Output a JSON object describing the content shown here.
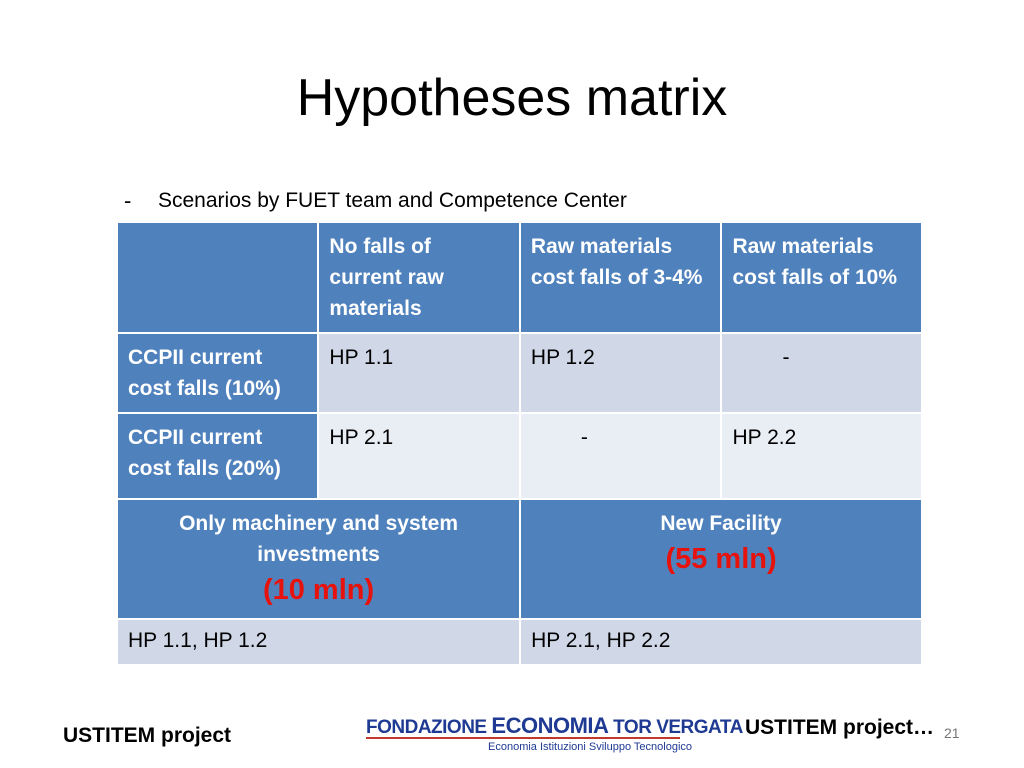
{
  "slide": {
    "title": "Hypotheses matrix",
    "bullet_dash": "-",
    "bullet": "Scenarios by FUET team and Competence Center"
  },
  "matrix": {
    "col_headers": [
      "",
      "No falls of current raw materials",
      "Raw materials cost falls of 3-4%",
      "Raw materials cost falls of 10%"
    ],
    "rows": [
      {
        "label": "CCPII  current cost falls (10%)",
        "cells": [
          "HP 1.1",
          "HP 1.2",
          "-"
        ]
      },
      {
        "label": "CCPII current cost falls (20%)",
        "cells": [
          "HP 2.1",
          "-",
          "HP 2.2"
        ]
      }
    ]
  },
  "investment": {
    "left_header": "Only  machinery and system investments",
    "left_amount": "(10 mln)",
    "right_header": "New Facility",
    "right_amount": "(55 mln)",
    "left_value": "HP 1.1, HP 1.2",
    "right_value": "HP 2.1, HP 2.2"
  },
  "footer": {
    "left": "USTITEM project",
    "right": "USTITEM project…",
    "page": "21",
    "logo_line1_a": "FONDAZIONE ",
    "logo_line1_b": "ECONOMIA",
    "logo_line1_c": " TOR VERGATA",
    "logo_line2": "Economia  Istituzioni  Sviluppo Tecnologico"
  },
  "colors": {
    "header_blue": "#4f81bd",
    "row_light": "#d0d8e8",
    "row_lighter": "#e9edf4",
    "amount_red": "#e8120c"
  }
}
